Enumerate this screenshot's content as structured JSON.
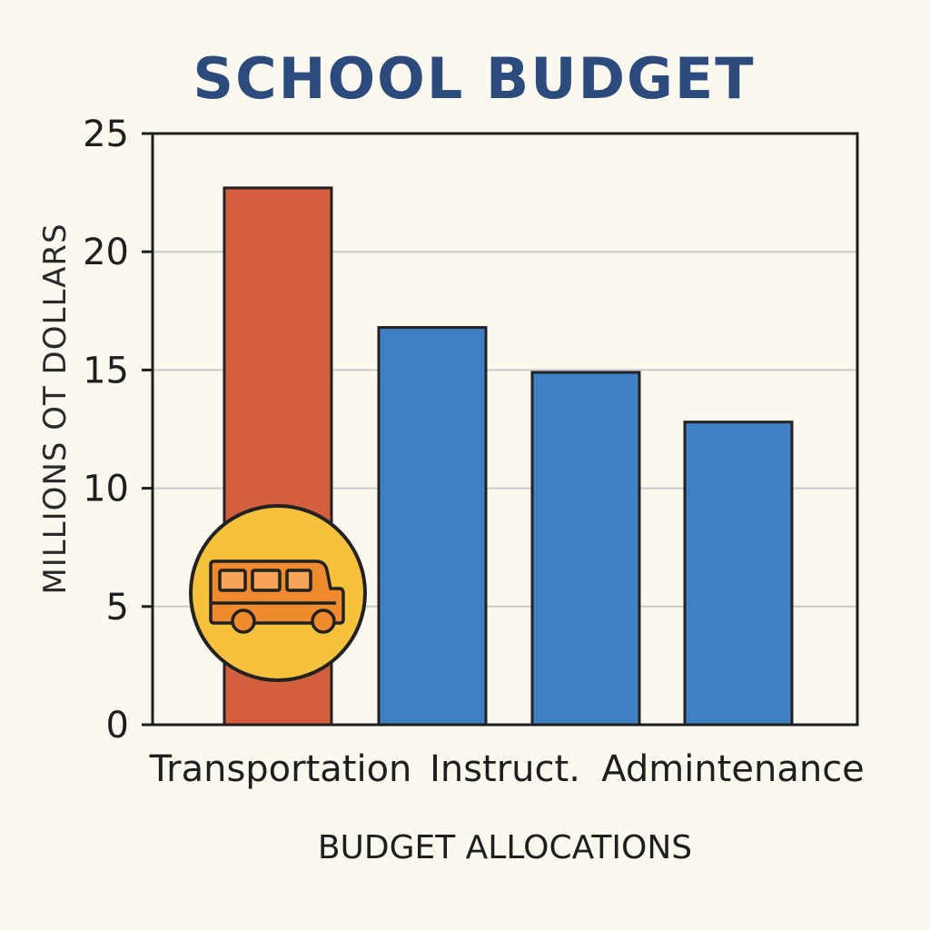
{
  "chart_data": {
    "type": "bar",
    "title": "SCHOOL BUDGET",
    "categories": [
      "Transportation",
      "Instruct.",
      "",
      "Admintenance"
    ],
    "values": [
      22.7,
      16.8,
      14.9,
      12.8
    ],
    "bar_colors": [
      "#d45f3e",
      "#3f7fc3",
      "#3f7fc3",
      "#3f7fc3"
    ],
    "xlabel": "BUDGET ALLOCATIONS",
    "ylabel": "MILLIONS OT DOLLARS",
    "ylim": [
      0,
      25
    ],
    "yticks": [
      "0",
      "5",
      "10",
      "15",
      "20",
      "25"
    ],
    "grid": true,
    "highlight": {
      "category": "Transportation",
      "icon": "school-bus-icon",
      "badge_color": "#f6c23e"
    }
  },
  "colors": {
    "title": "#2c4b7c",
    "background": "#fbf8ef",
    "grid": "#c9c9c9",
    "axis": "#1e1e1e"
  }
}
